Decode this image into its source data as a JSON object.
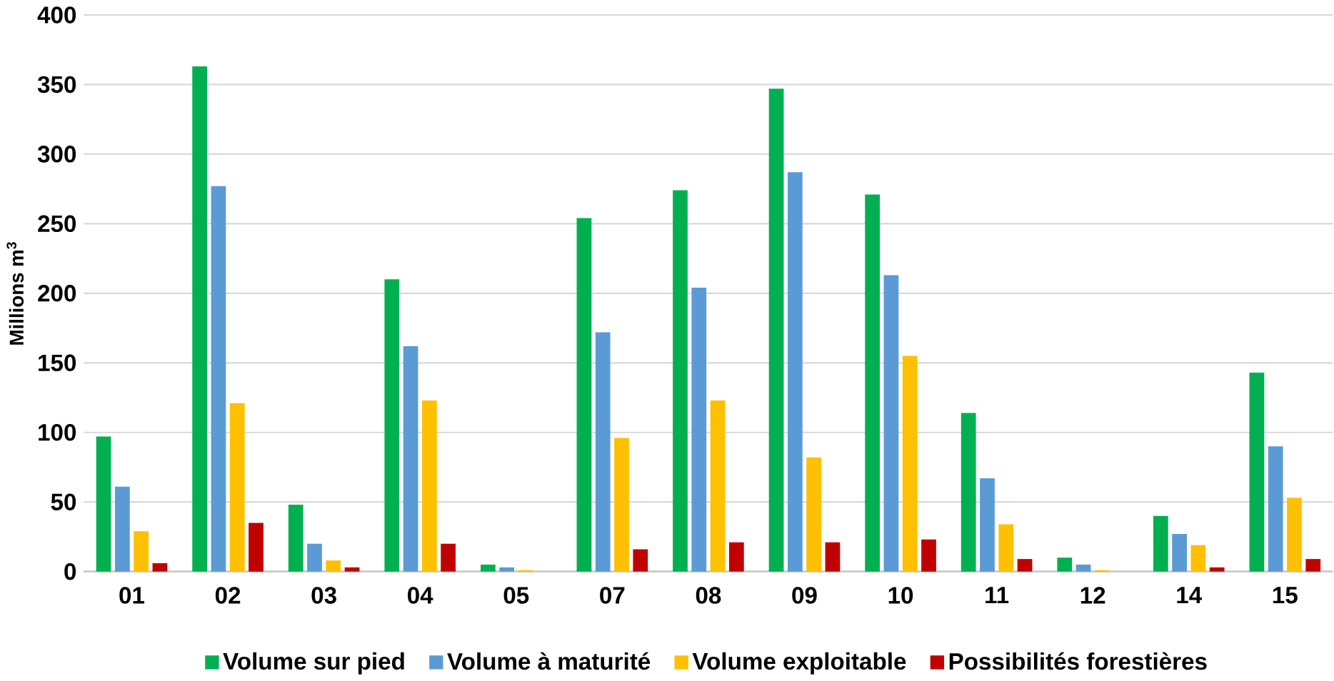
{
  "chart_data": {
    "type": "bar",
    "ylabel": "Millions m$^{3}$",
    "categories": [
      "01",
      "02",
      "03",
      "04",
      "05",
      "07",
      "08",
      "09",
      "10",
      "11",
      "12",
      "14",
      "15"
    ],
    "series": [
      {
        "name": "Volume sur pied",
        "color": "#00b050",
        "values": [
          97,
          363,
          48,
          210,
          5,
          254,
          274,
          347,
          271,
          114,
          10,
          40,
          143
        ]
      },
      {
        "name": "Volume à maturité",
        "color": "#5b9bd5",
        "values": [
          61,
          277,
          20,
          162,
          3,
          172,
          204,
          287,
          213,
          67,
          5,
          27,
          90
        ]
      },
      {
        "name": "Volume exploitable",
        "color": "#ffc000",
        "values": [
          29,
          121,
          8,
          123,
          1,
          96,
          123,
          82,
          155,
          34,
          1,
          19,
          53
        ]
      },
      {
        "name": "Possibilités forestières",
        "color": "#c00000",
        "values": [
          6,
          35,
          3,
          20,
          0,
          16,
          21,
          21,
          23,
          9,
          0,
          3,
          9
        ]
      }
    ],
    "ylim": [
      0,
      400
    ],
    "yticks": [
      0,
      50,
      100,
      150,
      200,
      250,
      300,
      350,
      400
    ],
    "grid": "y",
    "legend": "bottom"
  }
}
